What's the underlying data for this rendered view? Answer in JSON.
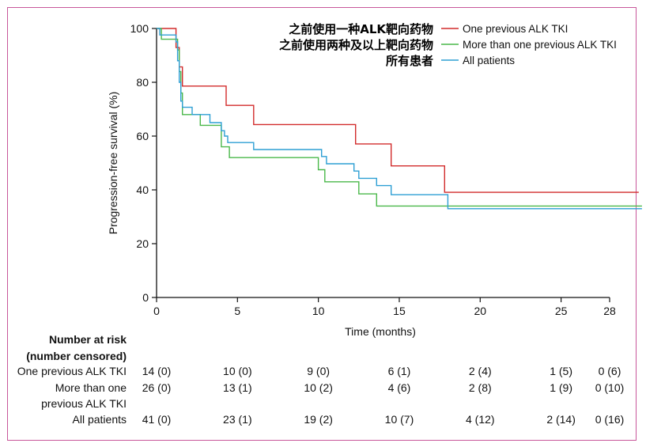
{
  "chart_data": {
    "type": "line",
    "title": "",
    "xlabel": "Time (months)",
    "ylabel": "Progression-free survival (%)",
    "xlim": [
      0,
      28
    ],
    "ylim": [
      0,
      100
    ],
    "xticks": [
      "0",
      "5",
      "10",
      "15",
      "20",
      "25",
      "28"
    ],
    "xtick_values": [
      0,
      5,
      10,
      15,
      20,
      25,
      28
    ],
    "yticks": [
      "0",
      "20",
      "40",
      "60",
      "80",
      "100"
    ],
    "ytick_values": [
      0,
      20,
      40,
      60,
      80,
      100
    ],
    "grid": false,
    "legend_position": "top-right",
    "series": [
      {
        "name": "One previous ALK TKI",
        "annotation": "之前使用一种ALK靶向药物",
        "color": "#d22b2b",
        "x": [
          0,
          1.2,
          1.4,
          1.6,
          1.8,
          4.3,
          6.0,
          12.3,
          14.5,
          17.8,
          29.8
        ],
        "y": [
          100,
          92.9,
          85.7,
          78.6,
          78.6,
          71.4,
          64.3,
          57.1,
          48.9,
          39.1,
          39.1
        ]
      },
      {
        "name": "More than one previous ALK TKI",
        "annotation": "之前使用两种及以上靶向药物",
        "color": "#4ab84a",
        "x": [
          0,
          0.3,
          1.3,
          1.4,
          1.5,
          1.6,
          2.7,
          4.0,
          4.5,
          10.0,
          10.4,
          12.5,
          13.6,
          30
        ],
        "y": [
          100,
          96,
          92,
          84,
          76,
          68,
          64,
          56,
          52,
          47.5,
          43,
          38.5,
          34,
          34
        ]
      },
      {
        "name": "All patients",
        "annotation": "所有患者",
        "color": "#2d9fd4",
        "x": [
          0,
          0.2,
          1.2,
          1.3,
          1.4,
          1.5,
          1.6,
          2.2,
          3.3,
          4.0,
          4.2,
          4.4,
          6.0,
          10.2,
          10.5,
          12.2,
          12.5,
          13.6,
          14.5,
          18.0,
          30
        ],
        "y": [
          100,
          97.6,
          95,
          88,
          80,
          73,
          70.7,
          68,
          65,
          62,
          60,
          57.6,
          55,
          52.4,
          49.7,
          47,
          44.3,
          41.6,
          38.2,
          33,
          33
        ]
      }
    ],
    "risk_table": {
      "header_line1": "Number at risk",
      "header_line2": "(number censored)",
      "rows": [
        {
          "label_line1": "One previous ALK TKI",
          "label_line2": "",
          "values": [
            "14 (0)",
            "10 (0)",
            "9 (0)",
            "6 (1)",
            "2 (4)",
            "1 (5)",
            "0 (6)"
          ]
        },
        {
          "label_line1": "More than one",
          "label_line2": "previous ALK TKI",
          "values": [
            "26 (0)",
            "13 (1)",
            "10 (2)",
            "4 (6)",
            "2 (8)",
            "1 (9)",
            "0 (10)"
          ]
        },
        {
          "label_line1": "All patients",
          "label_line2": "",
          "values": [
            "41 (0)",
            "23 (1)",
            "19 (2)",
            "10 (7)",
            "4 (12)",
            "2 (14)",
            "0 (16)"
          ]
        }
      ]
    }
  }
}
